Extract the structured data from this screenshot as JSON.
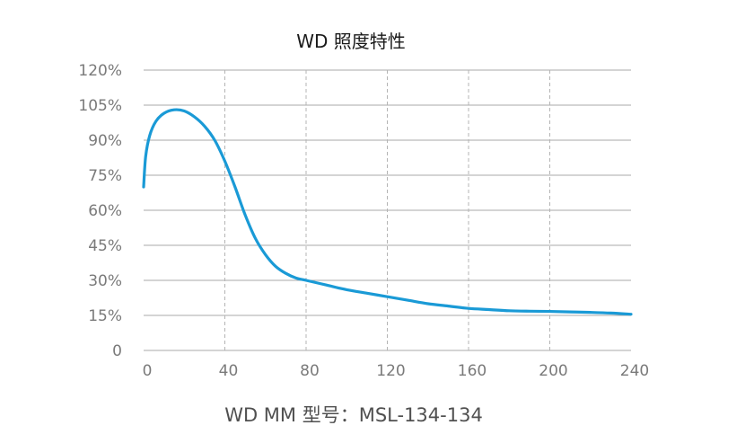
{
  "chart_data": {
    "type": "line",
    "title": "WD 照度特性",
    "xlabel": "WD MM 型号：MSL-134-134",
    "ylabel": "",
    "xlim": [
      0,
      240
    ],
    "ylim": [
      0,
      120
    ],
    "x_ticks": [
      "0",
      "40",
      "80",
      "120",
      "160",
      "200",
      "240"
    ],
    "y_ticks": [
      "0",
      "15%",
      "30%",
      "45%",
      "60%",
      "75%",
      "90%",
      "105%",
      "120%"
    ],
    "grid": {
      "horizontal": true,
      "vertical_dashed": true
    },
    "legend": "none",
    "series": [
      {
        "color": "#1a9ad6",
        "x": [
          0,
          1,
          3,
          6,
          10,
          15,
          20,
          25,
          30,
          35,
          40,
          45,
          50,
          55,
          60,
          65,
          70,
          75,
          80,
          90,
          100,
          110,
          120,
          130,
          140,
          150,
          160,
          170,
          180,
          190,
          200,
          210,
          220,
          230,
          240
        ],
        "y": [
          70,
          83,
          92,
          98,
          101.5,
          103,
          102.5,
          100,
          96,
          90,
          81,
          70,
          58,
          48,
          41,
          36,
          33,
          31,
          30,
          28,
          26,
          24.5,
          23,
          21.5,
          20,
          19,
          18,
          17.5,
          17,
          16.8,
          16.7,
          16.5,
          16.3,
          16,
          15.5
        ]
      }
    ]
  }
}
